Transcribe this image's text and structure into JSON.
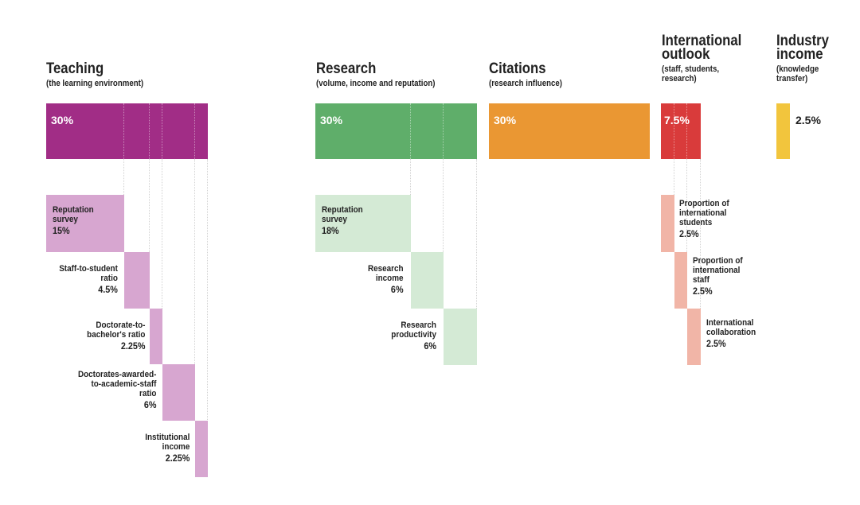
{
  "pillars": {
    "teaching": {
      "title": "Teaching",
      "subtitle": "(the learning environment)",
      "weight": "30%",
      "color": "#a12d86",
      "sub_color": "#d7a6d0",
      "items": [
        {
          "line1": "Reputation",
          "line2": "survey",
          "value": "15%"
        },
        {
          "line1": "Staff-to-student",
          "line2": "ratio",
          "value": "4.5%"
        },
        {
          "line1": "Doctorate-to-",
          "line2": "bachelor's ratio",
          "value": "2.25%"
        },
        {
          "line1": "Doctorates-awarded-",
          "line2": "to-academic-staff",
          "line3": "ratio",
          "value": "6%"
        },
        {
          "line1": "Institutional",
          "line2": "income",
          "value": "2.25%"
        }
      ]
    },
    "research": {
      "title": "Research",
      "subtitle": "(volume, income and reputation)",
      "weight": "30%",
      "color": "#5fae6a",
      "sub_color": "#d4ead5",
      "items": [
        {
          "line1": "Reputation",
          "line2": "survey",
          "value": "18%"
        },
        {
          "line1": "Research",
          "line2": "income",
          "value": "6%"
        },
        {
          "line1": "Research",
          "line2": "productivity",
          "value": "6%"
        }
      ]
    },
    "citations": {
      "title": "Citations",
      "subtitle": "(research influence)",
      "weight": "30%",
      "color": "#ea9733"
    },
    "international": {
      "title_line1": "International",
      "title_line2": "outlook",
      "sub_line1": "(staff, students,",
      "sub_line2": "research)",
      "weight": "7.5%",
      "color": "#d93b3b",
      "sub_color": "#f1b5a7",
      "items": [
        {
          "line1": "Proportion of",
          "line2": "international",
          "line3": "students",
          "value": "2.5%"
        },
        {
          "line1": "Proportion of",
          "line2": "international",
          "line3": "staff",
          "value": "2.5%"
        },
        {
          "line1": "International",
          "line2": "collaboration",
          "value": "2.5%"
        }
      ]
    },
    "industry": {
      "title_line1": "Industry",
      "title_line2": "income",
      "sub_line1": "(knowledge",
      "sub_line2": "transfer)",
      "weight": "2.5%",
      "color": "#f2c53d"
    }
  }
}
